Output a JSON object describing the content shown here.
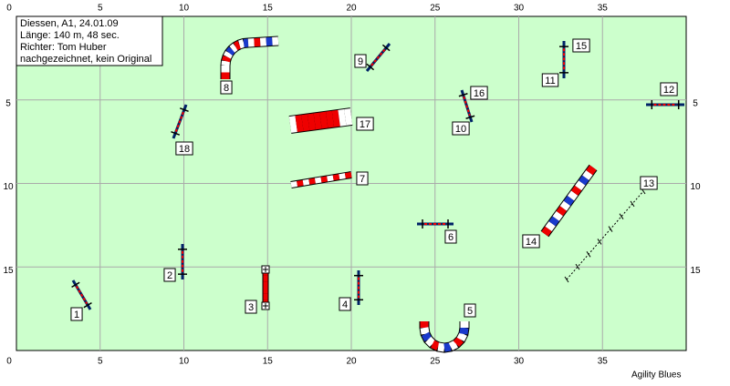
{
  "info": {
    "lines": [
      "Diessen, A1, 24.01.09",
      "Länge: 140 m, 48 sec.",
      "Richter: Tom Huber",
      "nachgezeichnet, kein Original"
    ]
  },
  "axes": {
    "x_ticks": [
      0,
      5,
      10,
      15,
      20,
      25,
      30,
      35
    ],
    "y_ticks": [
      0,
      5,
      10,
      15
    ]
  },
  "obstacles": [
    1,
    2,
    3,
    4,
    5,
    6,
    7,
    8,
    9,
    10,
    11,
    12,
    13,
    14,
    15,
    16,
    17,
    18
  ],
  "footer": "Agility Blues"
}
